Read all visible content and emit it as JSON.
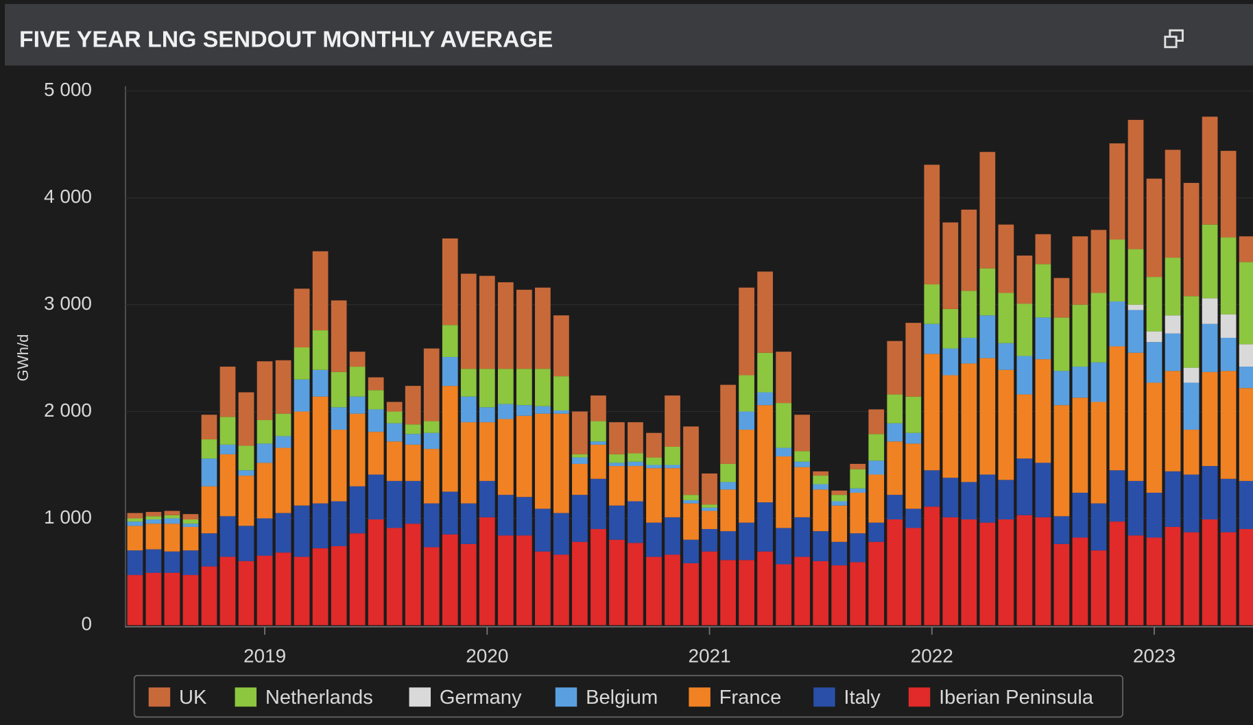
{
  "chart_data": {
    "type": "stacked-bar",
    "title": "FIVE YEAR LNG SENDOUT MONTHLY AVERAGE",
    "y_label": "GWh/d",
    "categories": [
      null,
      null,
      null,
      null,
      null,
      null,
      null,
      "2019",
      null,
      null,
      null,
      null,
      null,
      null,
      null,
      null,
      null,
      null,
      null,
      "2020",
      null,
      null,
      null,
      null,
      null,
      null,
      null,
      null,
      null,
      null,
      null,
      "2021",
      null,
      null,
      null,
      null,
      null,
      null,
      null,
      null,
      null,
      null,
      null,
      "2022",
      null,
      null,
      null,
      null,
      null,
      null,
      null,
      null,
      null,
      null,
      null,
      "2023",
      null,
      null,
      null,
      null,
      null
    ],
    "ylim": [
      0,
      5000
    ],
    "yticks": [
      {
        "value": 0,
        "label": "0"
      },
      {
        "value": 1000,
        "label": "1 000"
      },
      {
        "value": 2000,
        "label": "2 000"
      },
      {
        "value": 3000,
        "label": "3 000"
      },
      {
        "value": 4000,
        "label": "4 000"
      },
      {
        "value": 5000,
        "label": "5 000"
      }
    ],
    "grid": true,
    "legend": "bottom",
    "series": [
      {
        "name": "UK",
        "color": "#c8693a",
        "values": [
          50,
          40,
          40,
          50,
          230,
          470,
          500,
          550,
          500,
          550,
          740,
          670,
          140,
          120,
          90,
          360,
          680,
          810,
          890,
          870,
          810,
          740,
          760,
          570,
          400,
          240,
          300,
          290,
          230,
          480,
          640,
          290,
          740,
          820,
          760,
          480,
          340,
          40,
          40,
          50,
          230,
          500,
          690,
          1120,
          810,
          760,
          1090,
          640,
          450,
          280,
          370,
          640,
          590,
          900,
          1210,
          920,
          1010,
          1060,
          1010,
          810,
          240
        ]
      },
      {
        "name": "Netherlands",
        "color": "#8dc63f",
        "values": [
          30,
          30,
          30,
          40,
          180,
          260,
          230,
          220,
          210,
          300,
          370,
          330,
          280,
          180,
          110,
          90,
          110,
          300,
          260,
          360,
          330,
          340,
          350,
          320,
          30,
          190,
          80,
          80,
          70,
          170,
          50,
          30,
          170,
          340,
          370,
          420,
          100,
          80,
          60,
          180,
          250,
          270,
          340,
          370,
          370,
          440,
          440,
          470,
          490,
          500,
          500,
          580,
          650,
          580,
          520,
          510,
          540,
          670,
          690,
          720,
          770
        ]
      },
      {
        "name": "Germany",
        "color": "#d9d9d9",
        "values": [
          0,
          0,
          0,
          0,
          0,
          0,
          0,
          0,
          0,
          0,
          0,
          0,
          0,
          0,
          0,
          0,
          0,
          0,
          0,
          0,
          0,
          0,
          0,
          0,
          0,
          0,
          0,
          0,
          0,
          0,
          0,
          0,
          0,
          0,
          0,
          0,
          0,
          0,
          0,
          0,
          0,
          0,
          0,
          0,
          0,
          0,
          0,
          0,
          0,
          0,
          0,
          0,
          0,
          0,
          50,
          100,
          170,
          140,
          240,
          220,
          210
        ]
      },
      {
        "name": "Belgium",
        "color": "#5aa0e0",
        "values": [
          40,
          40,
          50,
          30,
          260,
          90,
          50,
          180,
          110,
          300,
          250,
          210,
          160,
          210,
          170,
          100,
          150,
          270,
          240,
          140,
          140,
          100,
          70,
          30,
          60,
          30,
          30,
          40,
          30,
          30,
          30,
          30,
          70,
          170,
          120,
          80,
          50,
          50,
          40,
          40,
          130,
          170,
          100,
          280,
          250,
          240,
          400,
          250,
          360,
          390,
          320,
          290,
          370,
          420,
          400,
          380,
          350,
          440,
          450,
          310,
          200
        ]
      },
      {
        "name": "France",
        "color": "#f08223",
        "values": [
          230,
          240,
          260,
          220,
          440,
          580,
          470,
          520,
          610,
          880,
          1000,
          670,
          680,
          400,
          370,
          340,
          510,
          990,
          760,
          550,
          710,
          760,
          890,
          930,
          290,
          320,
          370,
          330,
          510,
          460,
          340,
          170,
          390,
          870,
          910,
          670,
          470,
          390,
          340,
          380,
          450,
          500,
          610,
          1090,
          960,
          1110,
          1090,
          1030,
          600,
          970,
          1040,
          890,
          950,
          1160,
          1200,
          1030,
          940,
          420,
          880,
          1010,
          870
        ]
      },
      {
        "name": "Italy",
        "color": "#2a4fa8",
        "values": [
          230,
          220,
          200,
          230,
          310,
          380,
          330,
          350,
          370,
          480,
          420,
          420,
          440,
          420,
          440,
          400,
          410,
          400,
          380,
          340,
          380,
          360,
          400,
          390,
          440,
          470,
          320,
          390,
          320,
          350,
          220,
          210,
          270,
          350,
          460,
          340,
          370,
          280,
          220,
          270,
          180,
          230,
          180,
          340,
          370,
          350,
          450,
          370,
          530,
          510,
          260,
          420,
          440,
          480,
          510,
          420,
          520,
          540,
          500,
          500,
          450
        ]
      },
      {
        "name": "Iberian Peninsula",
        "color": "#e12a2a",
        "values": [
          470,
          490,
          490,
          470,
          550,
          640,
          600,
          650,
          680,
          640,
          720,
          740,
          860,
          990,
          910,
          950,
          730,
          850,
          760,
          1010,
          840,
          840,
          690,
          660,
          780,
          900,
          800,
          770,
          640,
          660,
          580,
          690,
          610,
          610,
          690,
          570,
          640,
          600,
          560,
          590,
          780,
          990,
          910,
          1110,
          1010,
          990,
          960,
          990,
          1030,
          1010,
          760,
          820,
          700,
          970,
          840,
          820,
          920,
          870,
          990,
          870,
          900
        ]
      }
    ]
  }
}
